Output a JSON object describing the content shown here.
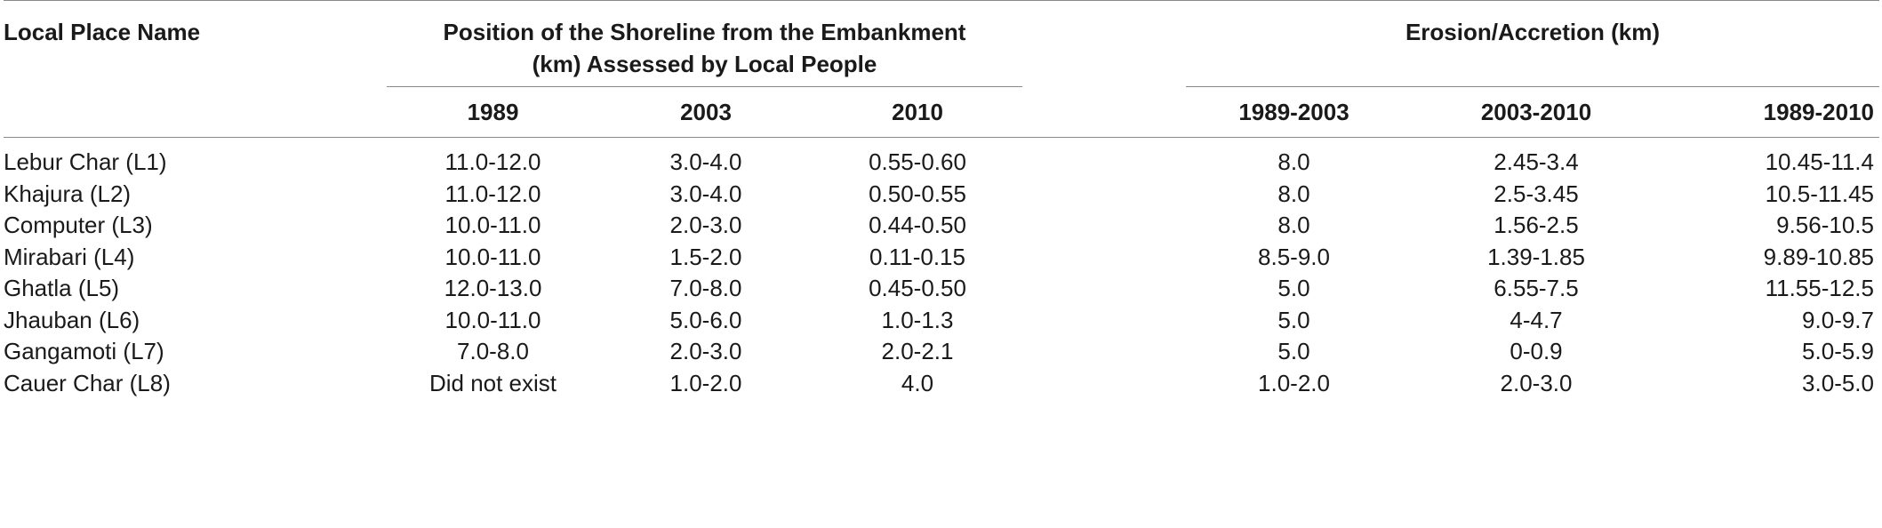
{
  "table": {
    "header": {
      "place_name": "Local Place Name",
      "shoreline_group": "Position of the Shoreline from the Embankment (km) Assessed by Local People",
      "shoreline_group_line1": "Position of the Shoreline from the Embankment",
      "shoreline_group_line2": "(km) Assessed by Local People",
      "erosion_group": "Erosion/Accretion (km)",
      "shoreline_years": [
        "1989",
        "2003",
        "2010"
      ],
      "erosion_periods": [
        "1989-2003",
        "2003-2010",
        "1989-2010"
      ]
    },
    "rows": [
      {
        "place": "Lebur Char (L1)",
        "y1989": "11.0-12.0",
        "y2003": "3.0-4.0",
        "y2010": "0.55-0.60",
        "p1": "8.0",
        "p2": "2.45-3.4",
        "p3": "10.45-11.4"
      },
      {
        "place": "Khajura (L2)",
        "y1989": "11.0-12.0",
        "y2003": "3.0-4.0",
        "y2010": "0.50-0.55",
        "p1": "8.0",
        "p2": "2.5-3.45",
        "p3": "10.5-11.45"
      },
      {
        "place": "Computer (L3)",
        "y1989": "10.0-11.0",
        "y2003": "2.0-3.0",
        "y2010": "0.44-0.50",
        "p1": "8.0",
        "p2": "1.56-2.5",
        "p3": "9.56-10.5"
      },
      {
        "place": "Mirabari (L4)",
        "y1989": "10.0-11.0",
        "y2003": "1.5-2.0",
        "y2010": "0.11-0.15",
        "p1": "8.5-9.0",
        "p2": "1.39-1.85",
        "p3": "9.89-10.85"
      },
      {
        "place": "Ghatla (L5)",
        "y1989": "12.0-13.0",
        "y2003": "7.0-8.0",
        "y2010": "0.45-0.50",
        "p1": "5.0",
        "p2": "6.55-7.5",
        "p3": "11.55-12.5"
      },
      {
        "place": "Jhauban (L6)",
        "y1989": "10.0-11.0",
        "y2003": "5.0-6.0",
        "y2010": "1.0-1.3",
        "p1": "5.0",
        "p2": "4-4.7",
        "p3": "9.0-9.7"
      },
      {
        "place": "Gangamoti (L7)",
        "y1989": "7.0-8.0",
        "y2003": "2.0-3.0",
        "y2010": "2.0-2.1",
        "p1": "5.0",
        "p2": "0-0.9",
        "p3": "5.0-5.9"
      },
      {
        "place": "Cauer Char (L8)",
        "y1989": "Did not exist",
        "y2003": "1.0-2.0",
        "y2010": "4.0",
        "p1": "1.0-2.0",
        "p2": "2.0-3.0",
        "p3": "3.0-5.0"
      }
    ]
  }
}
